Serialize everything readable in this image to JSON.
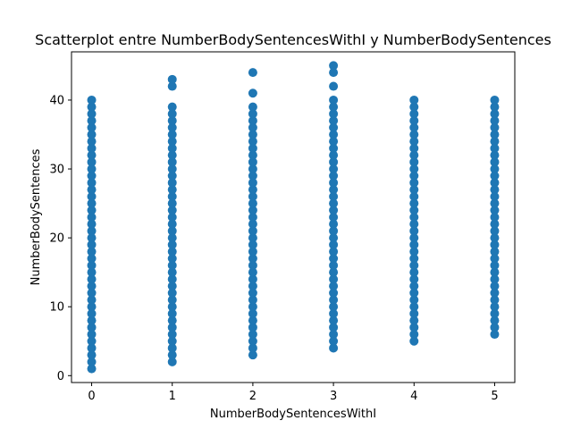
{
  "chart_data": {
    "type": "scatter",
    "title": "Scatterplot entre NumberBodySentencesWithI y NumberBodySentences",
    "xlabel": "NumberBodySentencesWithI",
    "ylabel": "NumberBodySentences",
    "xlim": [
      -0.25,
      5.25
    ],
    "ylim": [
      -1,
      47
    ],
    "xticks": [
      0,
      1,
      2,
      3,
      4,
      5
    ],
    "yticks": [
      0,
      10,
      20,
      30,
      40
    ],
    "grid": false,
    "legend": "none",
    "marker_color": "#1f77b4",
    "points": [
      {
        "x": 0,
        "y": [
          1,
          2,
          3,
          4,
          5,
          6,
          7,
          8,
          9,
          10,
          11,
          12,
          13,
          14,
          15,
          16,
          17,
          18,
          19,
          20,
          21,
          22,
          23,
          24,
          25,
          26,
          27,
          28,
          29,
          30,
          31,
          32,
          33,
          34,
          35,
          36,
          37,
          38,
          39,
          40
        ]
      },
      {
        "x": 1,
        "y": [
          2,
          3,
          4,
          5,
          6,
          7,
          8,
          9,
          10,
          11,
          12,
          13,
          14,
          15,
          16,
          17,
          18,
          19,
          20,
          21,
          22,
          23,
          24,
          25,
          26,
          27,
          28,
          29,
          30,
          31,
          32,
          33,
          34,
          35,
          36,
          37,
          38,
          39,
          42,
          43
        ]
      },
      {
        "x": 2,
        "y": [
          3,
          4,
          5,
          6,
          7,
          8,
          9,
          10,
          11,
          12,
          13,
          14,
          15,
          16,
          17,
          18,
          19,
          20,
          21,
          22,
          23,
          24,
          25,
          26,
          27,
          28,
          29,
          30,
          31,
          32,
          33,
          34,
          35,
          36,
          37,
          38,
          39,
          41,
          44
        ]
      },
      {
        "x": 3,
        "y": [
          4,
          5,
          6,
          7,
          8,
          9,
          10,
          11,
          12,
          13,
          14,
          15,
          16,
          17,
          18,
          19,
          20,
          21,
          22,
          23,
          24,
          25,
          26,
          27,
          28,
          29,
          30,
          31,
          32,
          33,
          34,
          35,
          36,
          37,
          38,
          39,
          40,
          42,
          44,
          45
        ]
      },
      {
        "x": 4,
        "y": [
          5,
          6,
          7,
          8,
          9,
          10,
          11,
          12,
          13,
          14,
          15,
          16,
          17,
          18,
          19,
          20,
          21,
          22,
          23,
          24,
          25,
          26,
          27,
          28,
          29,
          30,
          31,
          32,
          33,
          34,
          35,
          36,
          37,
          38,
          39,
          40
        ]
      },
      {
        "x": 5,
        "y": [
          6,
          7,
          8,
          9,
          10,
          11,
          12,
          13,
          14,
          15,
          16,
          17,
          18,
          19,
          20,
          21,
          22,
          23,
          24,
          25,
          26,
          27,
          28,
          29,
          30,
          31,
          32,
          33,
          34,
          35,
          36,
          37,
          38,
          39,
          40
        ]
      }
    ]
  }
}
